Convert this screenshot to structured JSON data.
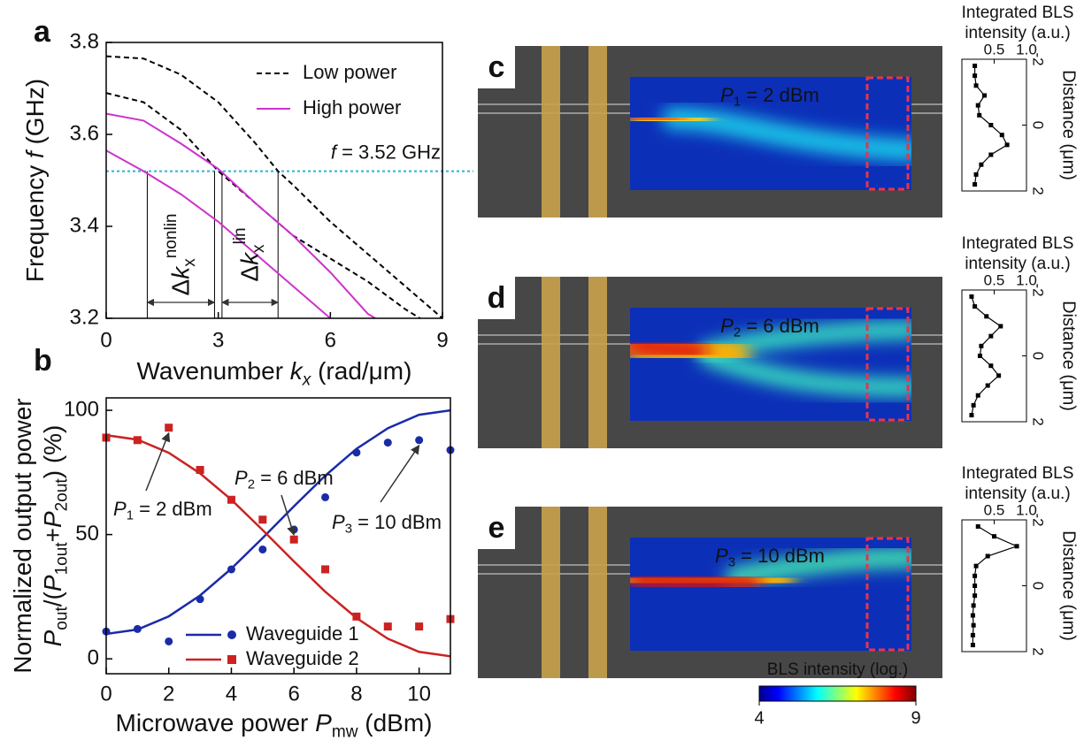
{
  "chart_data": [
    {
      "type": "line",
      "panel": "a",
      "xlabel": [
        {
          "t": "Wavenumber "
        },
        {
          "t": "k",
          "i": true
        },
        {
          "t": "x",
          "i": true,
          "sub": true
        },
        {
          "t": " (rad/μm)"
        }
      ],
      "ylabel": [
        {
          "t": "Frequency "
        },
        {
          "t": "f",
          "i": true
        },
        {
          "t": " (GHz)"
        }
      ],
      "xlim": [
        0,
        9
      ],
      "xticks": [
        0,
        3,
        6,
        9
      ],
      "ylim": [
        3.2,
        3.8
      ],
      "yticks": [
        3.2,
        3.4,
        3.6,
        3.8
      ],
      "legend": "upper right",
      "series": [
        {
          "name": "Low power",
          "color": "#000000",
          "dash": true,
          "curves": [
            {
              "x": [
                0,
                1,
                2,
                3,
                4,
                4.6,
                5,
                6,
                7,
                8,
                9
              ],
              "y": [
                3.77,
                3.765,
                3.73,
                3.67,
                3.58,
                3.52,
                3.49,
                3.41,
                3.34,
                3.27,
                3.2
              ]
            },
            {
              "x": [
                0,
                1,
                2,
                3,
                4,
                5,
                6,
                7,
                8,
                8.4
              ],
              "y": [
                3.69,
                3.67,
                3.61,
                3.52,
                3.45,
                3.38,
                3.33,
                3.28,
                3.22,
                3.2
              ]
            }
          ]
        },
        {
          "name": "High power",
          "color": "#cc33cc",
          "dash": false,
          "curves": [
            {
              "x": [
                0,
                1,
                2,
                3,
                4,
                5,
                6,
                7,
                7.2
              ],
              "y": [
                3.645,
                3.63,
                3.58,
                3.525,
                3.45,
                3.38,
                3.3,
                3.21,
                3.2
              ]
            },
            {
              "x": [
                0,
                1,
                2,
                3,
                4,
                5,
                6
              ],
              "y": [
                3.565,
                3.52,
                3.47,
                3.41,
                3.34,
                3.27,
                3.2
              ]
            }
          ]
        }
      ],
      "hline": {
        "label": [
          {
            "t": "f",
            "i": true
          },
          {
            "t": " = 3.52 GHz"
          }
        ],
        "value": 3.52,
        "color": "#27b4d8"
      },
      "drop_lines": [
        1.1,
        2.9,
        3.1,
        4.6
      ],
      "spans": [
        {
          "from": 1.1,
          "to": 2.9,
          "label": [
            {
              "t": "Δ"
            },
            {
              "t": "k",
              "i": true
            },
            {
              "t": "x",
              "sub": true
            },
            {
              "t": "nonlin",
              "sup": true
            }
          ]
        },
        {
          "from": 3.1,
          "to": 4.6,
          "label": [
            {
              "t": "Δ"
            },
            {
              "t": "k",
              "i": true
            },
            {
              "t": "x",
              "sub": true
            },
            {
              "t": "lin",
              "sup": true
            }
          ]
        }
      ]
    },
    {
      "type": "scatter",
      "panel": "b",
      "xlabel": [
        {
          "t": "Microwave power "
        },
        {
          "t": "P",
          "i": true
        },
        {
          "t": "mw",
          "sub": true
        },
        {
          "t": " (dBm)"
        }
      ],
      "ylabel": [
        [
          {
            "t": "Normalized output power"
          }
        ],
        [
          {
            "t": "P",
            "i": true
          },
          {
            "t": "out",
            "sub": true
          },
          {
            "t": "/("
          },
          {
            "t": "P",
            "i": true
          },
          {
            "t": "1out",
            "sub": true
          },
          {
            "t": "+"
          },
          {
            "t": "P",
            "i": true
          },
          {
            "t": "2out",
            "sub": true
          },
          {
            "t": ") (%)"
          }
        ]
      ],
      "x": [
        0,
        1,
        2,
        3,
        4,
        5,
        6,
        7,
        8,
        9,
        10,
        11
      ],
      "xlim": [
        0,
        11
      ],
      "xticks": [
        0,
        2,
        4,
        6,
        8,
        10
      ],
      "ylim": [
        -6,
        105
      ],
      "yticks": [
        0,
        50,
        100
      ],
      "legend": "lower left",
      "series": [
        {
          "name": "Waveguide 1",
          "color": "#1a2ba8",
          "marker": "circle",
          "values": [
            11,
            12,
            7,
            24,
            36,
            44,
            52,
            65,
            83,
            87,
            88,
            84
          ],
          "fit": [
            10,
            11.8,
            17.1,
            25.5,
            36.3,
            48.6,
            61.4,
            73.7,
            84.5,
            92.8,
            98.2,
            100
          ]
        },
        {
          "name": "Waveguide 2",
          "color": "#cc2222",
          "marker": "square",
          "values": [
            89,
            88,
            93,
            76,
            64,
            56,
            48,
            36,
            17,
            13,
            13,
            16
          ],
          "fit": [
            90,
            88.2,
            82.9,
            74.6,
            64,
            51.8,
            39.2,
            27,
            16.4,
            8.1,
            2.8,
            1
          ]
        }
      ],
      "annotations": [
        {
          "x": 2,
          "y": 93,
          "label": [
            {
              "t": "P",
              "i": true
            },
            {
              "t": "1",
              "sub": true
            },
            {
              "t": " = 2 dBm"
            }
          ]
        },
        {
          "x": 6,
          "y": 52,
          "label": [
            {
              "t": "P",
              "i": true
            },
            {
              "t": "2",
              "sub": true
            },
            {
              "t": " = 6 dBm"
            }
          ]
        },
        {
          "x": 10,
          "y": 88,
          "label": [
            {
              "t": "P",
              "i": true
            },
            {
              "t": "3",
              "sub": true
            },
            {
              "t": " = 10 dBm"
            }
          ]
        }
      ]
    },
    {
      "type": "line",
      "panel": "c",
      "title": [
        "Integrated BLS",
        "intensity (a.u.)"
      ],
      "ylabel": "Distance (μm)",
      "map_label": [
        {
          "t": "P",
          "i": true
        },
        {
          "t": "1",
          "sub": true
        },
        {
          "t": " = 2 dBm"
        }
      ],
      "distance": [
        -1.8,
        -1.5,
        -1.2,
        -0.9,
        -0.6,
        -0.3,
        0,
        0.3,
        0.6,
        0.9,
        1.2,
        1.5,
        1.8
      ],
      "values": [
        0.2,
        0.2,
        0.22,
        0.35,
        0.25,
        0.27,
        0.45,
        0.62,
        0.7,
        0.45,
        0.3,
        0.22,
        0.2
      ],
      "xlim": [
        0,
        1
      ],
      "xticks": [
        0.5,
        {
          "value": 1,
          "label": "1.0"
        }
      ],
      "ylim": [
        -2,
        2
      ],
      "yticks": [
        -2,
        0,
        2
      ],
      "y_inverted": true
    },
    {
      "type": "line",
      "panel": "d",
      "title": [
        "Integrated BLS",
        "intensity (a.u.)"
      ],
      "ylabel": "Distance (μm)",
      "map_label": [
        {
          "t": "P",
          "i": true
        },
        {
          "t": "2",
          "sub": true
        },
        {
          "t": " = 6 dBm"
        }
      ],
      "distance": [
        -1.8,
        -1.5,
        -1.2,
        -0.9,
        -0.6,
        -0.3,
        0,
        0.3,
        0.6,
        0.9,
        1.2,
        1.5,
        1.8
      ],
      "values": [
        0.15,
        0.2,
        0.38,
        0.6,
        0.45,
        0.3,
        0.28,
        0.45,
        0.57,
        0.4,
        0.25,
        0.18,
        0.15
      ],
      "xlim": [
        0,
        1
      ],
      "xticks": [
        0.5,
        {
          "value": 1,
          "label": "1.0"
        }
      ],
      "ylim": [
        -2,
        2
      ],
      "yticks": [
        -2,
        0,
        2
      ],
      "y_inverted": true
    },
    {
      "type": "line",
      "panel": "e",
      "title": [
        "Integrated BLS",
        "intensity (a.u.)"
      ],
      "ylabel": "Distance (μm)",
      "map_label": [
        {
          "t": "P",
          "i": true
        },
        {
          "t": "3",
          "sub": true
        },
        {
          "t": " = 10 dBm"
        }
      ],
      "distance": [
        -1.8,
        -1.5,
        -1.2,
        -0.9,
        -0.6,
        -0.3,
        0,
        0.3,
        0.6,
        0.9,
        1.2,
        1.5,
        1.8
      ],
      "values": [
        0.25,
        0.5,
        0.85,
        0.4,
        0.22,
        0.2,
        0.2,
        0.2,
        0.18,
        0.17,
        0.18,
        0.17,
        0.17
      ],
      "xlim": [
        0,
        1
      ],
      "xticks": [
        0.5,
        {
          "value": 1,
          "label": "1.0"
        }
      ],
      "ylim": [
        -2,
        2
      ],
      "yticks": [
        -2,
        0,
        2
      ],
      "y_inverted": true
    },
    {
      "type": "colorbar",
      "title": "BLS intensity (log.)",
      "lim": [
        4,
        9
      ],
      "ticks": [
        4,
        9
      ],
      "colormap": "jet"
    }
  ]
}
